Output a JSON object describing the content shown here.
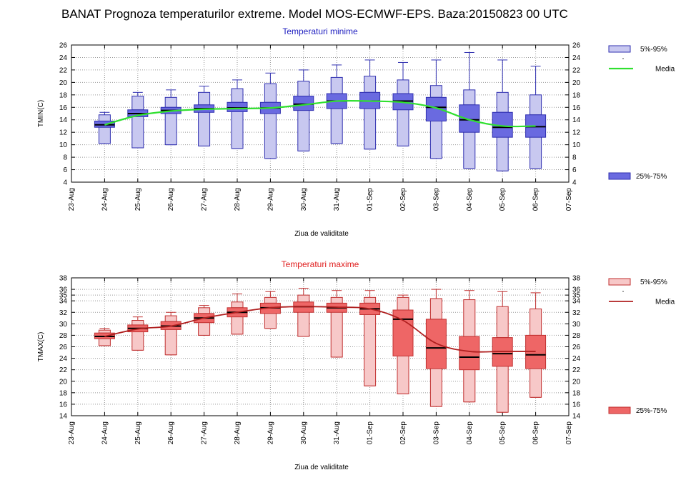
{
  "title": "BANAT  Prognoza temperaturilor extreme.  Model MOS-ECMWF-EPS. Baza:20150823 00 UTC",
  "colors": {
    "min_whisker_fill": "#c8c8f0",
    "min_box_fill": "#6a6ae0",
    "min_stroke": "#3030b0",
    "min_median_line": "#30e030",
    "max_whisker_fill": "#f7c8c8",
    "max_box_fill": "#ee6666",
    "max_stroke": "#c03030",
    "max_median_line": "#b02020"
  },
  "chart_data": [
    {
      "type": "box",
      "title": "Temperaturi minime",
      "title_color": "#2020c0",
      "xlabel": "Ziua de validitate",
      "ylabel": "TMIN(C)",
      "ylim": [
        4,
        26
      ],
      "yticks": [
        4,
        6,
        8,
        10,
        12,
        14,
        16,
        18,
        20,
        22,
        24,
        26
      ],
      "grid": true,
      "legend_position": "right",
      "legend": {
        "range_label": "5%-95%",
        "median_label": "Media",
        "iqr_label": "25%-75%"
      },
      "xtick_labels": [
        "23-Aug",
        "24-Aug",
        "25-Aug",
        "26-Aug",
        "27-Aug",
        "28-Aug",
        "29-Aug",
        "30-Aug",
        "31-Aug",
        "01-Sep",
        "02-Sep",
        "03-Sep",
        "04-Sep",
        "05-Sep",
        "06-Sep",
        "07-Sep"
      ],
      "series": [
        {
          "x": "24-Aug",
          "p5": 10.2,
          "p25": 12.8,
          "median": 13.2,
          "p75": 13.8,
          "p95": 14.8,
          "max": 15.2,
          "mean": 13.2
        },
        {
          "x": "25-Aug",
          "p5": 9.5,
          "p25": 14.5,
          "median": 15.0,
          "p75": 15.6,
          "p95": 17.8,
          "max": 18.4,
          "mean": 14.7
        },
        {
          "x": "26-Aug",
          "p5": 10.0,
          "p25": 15.0,
          "median": 15.5,
          "p75": 16.0,
          "p95": 17.6,
          "max": 18.8,
          "mean": 15.4
        },
        {
          "x": "27-Aug",
          "p5": 9.8,
          "p25": 15.2,
          "median": 15.8,
          "p75": 16.4,
          "p95": 18.4,
          "max": 19.4,
          "mean": 15.7
        },
        {
          "x": "28-Aug",
          "p5": 9.4,
          "p25": 15.3,
          "median": 15.9,
          "p75": 16.8,
          "p95": 19.0,
          "max": 20.4,
          "mean": 15.8
        },
        {
          "x": "29-Aug",
          "p5": 7.8,
          "p25": 15.0,
          "median": 15.9,
          "p75": 16.8,
          "p95": 19.8,
          "max": 21.5,
          "mean": 15.9
        },
        {
          "x": "30-Aug",
          "p5": 9.0,
          "p25": 15.5,
          "median": 16.5,
          "p75": 17.8,
          "p95": 20.2,
          "max": 22.0,
          "mean": 16.4
        },
        {
          "x": "31-Aug",
          "p5": 10.2,
          "p25": 15.8,
          "median": 17.0,
          "p75": 18.2,
          "p95": 20.8,
          "max": 22.8,
          "mean": 17.0
        },
        {
          "x": "01-Sep",
          "p5": 9.3,
          "p25": 15.8,
          "median": 17.0,
          "p75": 18.4,
          "p95": 21.0,
          "max": 23.6,
          "mean": 17.0
        },
        {
          "x": "02-Sep",
          "p5": 9.8,
          "p25": 15.6,
          "median": 17.0,
          "p75": 18.2,
          "p95": 20.4,
          "max": 23.2,
          "mean": 16.8
        },
        {
          "x": "03-Sep",
          "p5": 7.8,
          "p25": 13.8,
          "median": 16.0,
          "p75": 17.6,
          "p95": 19.5,
          "max": 23.6,
          "mean": 15.9
        },
        {
          "x": "04-Sep",
          "p5": 6.2,
          "p25": 12.0,
          "median": 14.0,
          "p75": 16.4,
          "p95": 18.8,
          "max": 24.8,
          "mean": 14.0
        },
        {
          "x": "05-Sep",
          "p5": 5.8,
          "p25": 11.2,
          "median": 12.8,
          "p75": 15.2,
          "p95": 18.4,
          "max": 23.6,
          "mean": 13.0
        },
        {
          "x": "06-Sep",
          "p5": 6.2,
          "p25": 11.2,
          "median": 12.9,
          "p75": 14.8,
          "p95": 18.0,
          "max": 22.6,
          "mean": 13.0
        }
      ]
    },
    {
      "type": "box",
      "title": "Temperaturi maxime",
      "title_color": "#e02020",
      "xlabel": "Ziua de validitate",
      "ylabel": "TMAX(C)",
      "ylim": [
        14,
        38
      ],
      "yticks": [
        14,
        16,
        18,
        20,
        22,
        24,
        26,
        28,
        30,
        32,
        34,
        35,
        36,
        38
      ],
      "grid": true,
      "legend_position": "right",
      "legend": {
        "range_label": "5%-95%",
        "median_label": "Media",
        "iqr_label": "25%-75%"
      },
      "xtick_labels": [
        "23-Aug",
        "24-Aug",
        "25-Aug",
        "26-Aug",
        "27-Aug",
        "28-Aug",
        "29-Aug",
        "30-Aug",
        "31-Aug",
        "01-Sep",
        "02-Sep",
        "03-Sep",
        "04-Sep",
        "05-Sep",
        "06-Sep",
        "07-Sep"
      ],
      "series": [
        {
          "x": "24-Aug",
          "p5": 26.2,
          "p25": 27.4,
          "median": 27.8,
          "p75": 28.4,
          "p95": 28.9,
          "max": 29.2,
          "mean": 27.8
        },
        {
          "x": "25-Aug",
          "p5": 25.4,
          "p25": 28.6,
          "median": 29.2,
          "p75": 29.8,
          "p95": 30.6,
          "max": 31.2,
          "mean": 29.1
        },
        {
          "x": "26-Aug",
          "p5": 24.6,
          "p25": 29.0,
          "median": 29.6,
          "p75": 30.4,
          "p95": 31.4,
          "max": 32.0,
          "mean": 29.6
        },
        {
          "x": "27-Aug",
          "p5": 28.0,
          "p25": 30.2,
          "median": 31.0,
          "p75": 31.8,
          "p95": 32.8,
          "max": 33.2,
          "mean": 31.0
        },
        {
          "x": "28-Aug",
          "p5": 28.2,
          "p25": 31.2,
          "median": 32.0,
          "p75": 32.8,
          "p95": 33.8,
          "max": 35.2,
          "mean": 32.0
        },
        {
          "x": "29-Aug",
          "p5": 29.2,
          "p25": 31.8,
          "median": 32.8,
          "p75": 33.6,
          "p95": 34.6,
          "max": 35.6,
          "mean": 32.8
        },
        {
          "x": "30-Aug",
          "p5": 27.8,
          "p25": 32.0,
          "median": 33.0,
          "p75": 33.8,
          "p95": 35.0,
          "max": 36.2,
          "mean": 33.0
        },
        {
          "x": "31-Aug",
          "p5": 24.2,
          "p25": 32.0,
          "median": 32.8,
          "p75": 33.6,
          "p95": 34.6,
          "max": 35.8,
          "mean": 32.9
        },
        {
          "x": "01-Sep",
          "p5": 19.2,
          "p25": 31.6,
          "median": 32.6,
          "p75": 33.6,
          "p95": 34.6,
          "max": 35.8,
          "mean": 32.6
        },
        {
          "x": "02-Sep",
          "p5": 17.8,
          "p25": 24.4,
          "median": 30.8,
          "p75": 32.4,
          "p95": 34.6,
          "max": 35.0,
          "mean": 30.6
        },
        {
          "x": "03-Sep",
          "p5": 15.6,
          "p25": 22.2,
          "median": 25.8,
          "p75": 30.8,
          "p95": 34.4,
          "max": 36.0,
          "mean": 26.6
        },
        {
          "x": "04-Sep",
          "p5": 16.4,
          "p25": 22.0,
          "median": 24.2,
          "p75": 27.8,
          "p95": 34.2,
          "max": 35.8,
          "mean": 25.2
        },
        {
          "x": "05-Sep",
          "p5": 14.6,
          "p25": 22.6,
          "median": 24.8,
          "p75": 27.6,
          "p95": 33.0,
          "max": 35.6,
          "mean": 25.2
        },
        {
          "x": "06-Sep",
          "p5": 17.2,
          "p25": 22.2,
          "median": 24.6,
          "p75": 28.0,
          "p95": 32.6,
          "max": 35.4,
          "mean": 25.2
        }
      ]
    }
  ]
}
